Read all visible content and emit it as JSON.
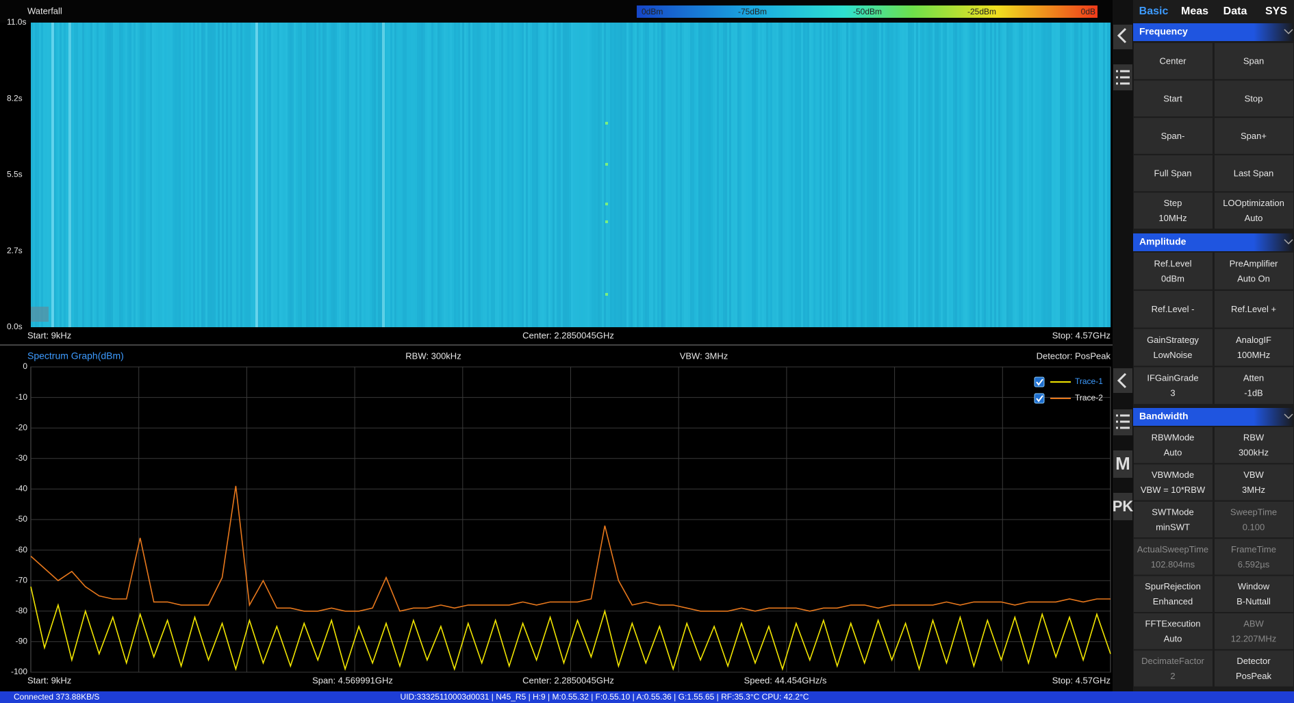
{
  "waterfall": {
    "title": "Waterfall",
    "colorbar_labels": [
      "0dBm",
      "-75dBm",
      "-50dBm",
      "-25dBm",
      "0dB"
    ],
    "time_ticks": [
      "11.0s",
      "8.2s",
      "5.5s",
      "2.7s",
      "0.0s"
    ],
    "start": "Start: 9kHz",
    "center": "Center: 2.2850045GHz",
    "stop": "Stop: 4.57GHz"
  },
  "chart_data": {
    "type": "line",
    "title": "Spectrum Graph(dBm)",
    "ylim": [
      -100,
      0
    ],
    "yticks": [
      0,
      -10,
      -20,
      -30,
      -40,
      -50,
      -60,
      -70,
      -80,
      -90,
      -100
    ],
    "grid": true,
    "series": [
      {
        "name": "Trace-1",
        "color": "#f2e600",
        "values": [
          -72,
          -92,
          -78,
          -96,
          -80,
          -94,
          -82,
          -97,
          -81,
          -95,
          -83,
          -98,
          -82,
          -96,
          -84,
          -99,
          -83,
          -97,
          -85,
          -98,
          -84,
          -96,
          -83,
          -99,
          -85,
          -97,
          -84,
          -98,
          -83,
          -96,
          -85,
          -99,
          -84,
          -97,
          -83,
          -98,
          -84,
          -96,
          -82,
          -97,
          -83,
          -95,
          -80,
          -98,
          -84,
          -97,
          -85,
          -99,
          -84,
          -96,
          -85,
          -98,
          -84,
          -97,
          -85,
          -99,
          -84,
          -96,
          -83,
          -98,
          -84,
          -97,
          -83,
          -96,
          -84,
          -99,
          -83,
          -97,
          -82,
          -98,
          -83,
          -96,
          -82,
          -97,
          -81,
          -95,
          -82,
          -96,
          -81,
          -94
        ]
      },
      {
        "name": "Trace-2",
        "color": "#e8781c",
        "values": [
          -62,
          -66,
          -70,
          -67,
          -72,
          -75,
          -76,
          -76,
          -56,
          -77,
          -77,
          -78,
          -78,
          -78,
          -69,
          -39,
          -78,
          -70,
          -79,
          -79,
          -80,
          -80,
          -79,
          -80,
          -80,
          -79,
          -69,
          -80,
          -79,
          -79,
          -78,
          -79,
          -78,
          -78,
          -78,
          -78,
          -77,
          -78,
          -77,
          -77,
          -77,
          -76,
          -52,
          -70,
          -78,
          -77,
          -78,
          -78,
          -79,
          -80,
          -80,
          -80,
          -79,
          -80,
          -79,
          -79,
          -79,
          -80,
          -79,
          -79,
          -78,
          -78,
          -79,
          -78,
          -78,
          -78,
          -78,
          -77,
          -78,
          -77,
          -77,
          -77,
          -78,
          -77,
          -77,
          -77,
          -76,
          -77,
          -76,
          -76
        ]
      }
    ]
  },
  "spectrum_info": {
    "rbw": "RBW: 300kHz",
    "vbw": "VBW: 3MHz",
    "detector": "Detector: PosPeak",
    "start": "Start: 9kHz",
    "span": "Span: 4.569991GHz",
    "center": "Center: 2.2850045GHz",
    "speed": "Speed: 44.454GHz/s",
    "stop": "Stop: 4.57GHz"
  },
  "toolbar": [
    "M",
    "PK"
  ],
  "tabs": [
    "Basic",
    "Meas",
    "Data",
    "SYS"
  ],
  "panel": {
    "sections": [
      {
        "title": "Frequency",
        "buttons": [
          {
            "label": "Center"
          },
          {
            "label": "Span"
          },
          {
            "label": "Start"
          },
          {
            "label": "Stop"
          },
          {
            "label": "Span-"
          },
          {
            "label": "Span+"
          },
          {
            "label": "Full Span"
          },
          {
            "label": "Last Span"
          },
          {
            "label": "Step",
            "value": "10MHz"
          },
          {
            "label": "LOOptimization",
            "value": "Auto"
          }
        ]
      },
      {
        "title": "Amplitude",
        "buttons": [
          {
            "label": "Ref.Level",
            "value": "0dBm"
          },
          {
            "label": "PreAmplifier",
            "value": "Auto On"
          },
          {
            "label": "Ref.Level -"
          },
          {
            "label": "Ref.Level +"
          },
          {
            "label": "GainStrategy",
            "value": "LowNoise"
          },
          {
            "label": "AnalogIF",
            "value": "100MHz"
          },
          {
            "label": "IFGainGrade",
            "value": "3"
          },
          {
            "label": "Atten",
            "value": "-1dB"
          }
        ]
      },
      {
        "title": "Bandwidth",
        "buttons": [
          {
            "label": "RBWMode",
            "value": "Auto"
          },
          {
            "label": "RBW",
            "value": "300kHz"
          },
          {
            "label": "VBWMode",
            "value": "VBW = 10*RBW"
          },
          {
            "label": "VBW",
            "value": "3MHz"
          },
          {
            "label": "SWTMode",
            "value": "minSWT"
          },
          {
            "label": "SweepTime",
            "value": "0.100",
            "dimmed": true
          },
          {
            "label": "ActualSweepTime",
            "value": "102.804ms",
            "dimmed": true
          },
          {
            "label": "FrameTime",
            "value": "6.592µs",
            "dimmed": true
          },
          {
            "label": "SpurRejection",
            "value": "Enhanced"
          },
          {
            "label": "Window",
            "value": "B-Nuttall"
          },
          {
            "label": "FFTExecution",
            "value": "Auto"
          },
          {
            "label": "ABW",
            "value": "12.207MHz",
            "dimmed": true
          },
          {
            "label": "DecimateFactor",
            "value": "2",
            "dimmed": true
          },
          {
            "label": "Detector",
            "value": "PosPeak"
          }
        ]
      }
    ]
  },
  "status": {
    "connection": "Connected 373.88KB/S",
    "details": "UID:33325110003d0031 | N45_R5 | H:9 | M:0.55.32 | F:0.55.10 | A:0.55.36 | G:1.55.65 | RF:35.3°C CPU: 42.2°C"
  }
}
